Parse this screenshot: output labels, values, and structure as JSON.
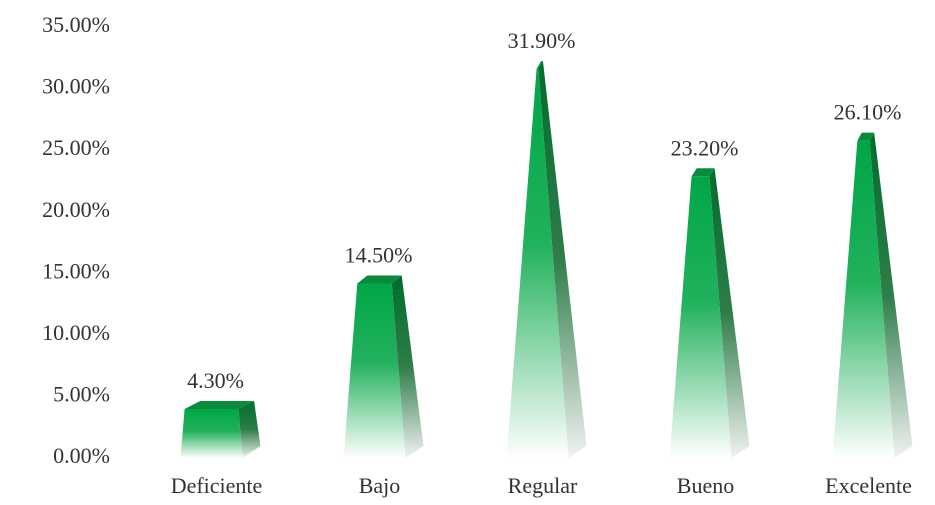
{
  "chart_data": {
    "type": "bar",
    "categories": [
      "Deficiente",
      "Bajo",
      "Regular",
      "Bueno",
      "Excelente"
    ],
    "values": [
      4.3,
      14.5,
      31.9,
      23.2,
      26.1
    ],
    "value_labels": [
      "4.30%",
      "14.50%",
      "31.90%",
      "23.20%",
      "26.10%"
    ],
    "color": "#00a648",
    "ylim": [
      0,
      35
    ],
    "yticks": [
      {
        "value": 0,
        "label": "0.00%"
      },
      {
        "value": 5,
        "label": "5.00%"
      },
      {
        "value": 10,
        "label": "10.00%"
      },
      {
        "value": 15,
        "label": "15.00%"
      },
      {
        "value": 20,
        "label": "20.00%"
      },
      {
        "value": 25,
        "label": "25.00%"
      },
      {
        "value": 30,
        "label": "30.00%"
      },
      {
        "value": 35,
        "label": "35.00%"
      }
    ],
    "grid": false
  }
}
